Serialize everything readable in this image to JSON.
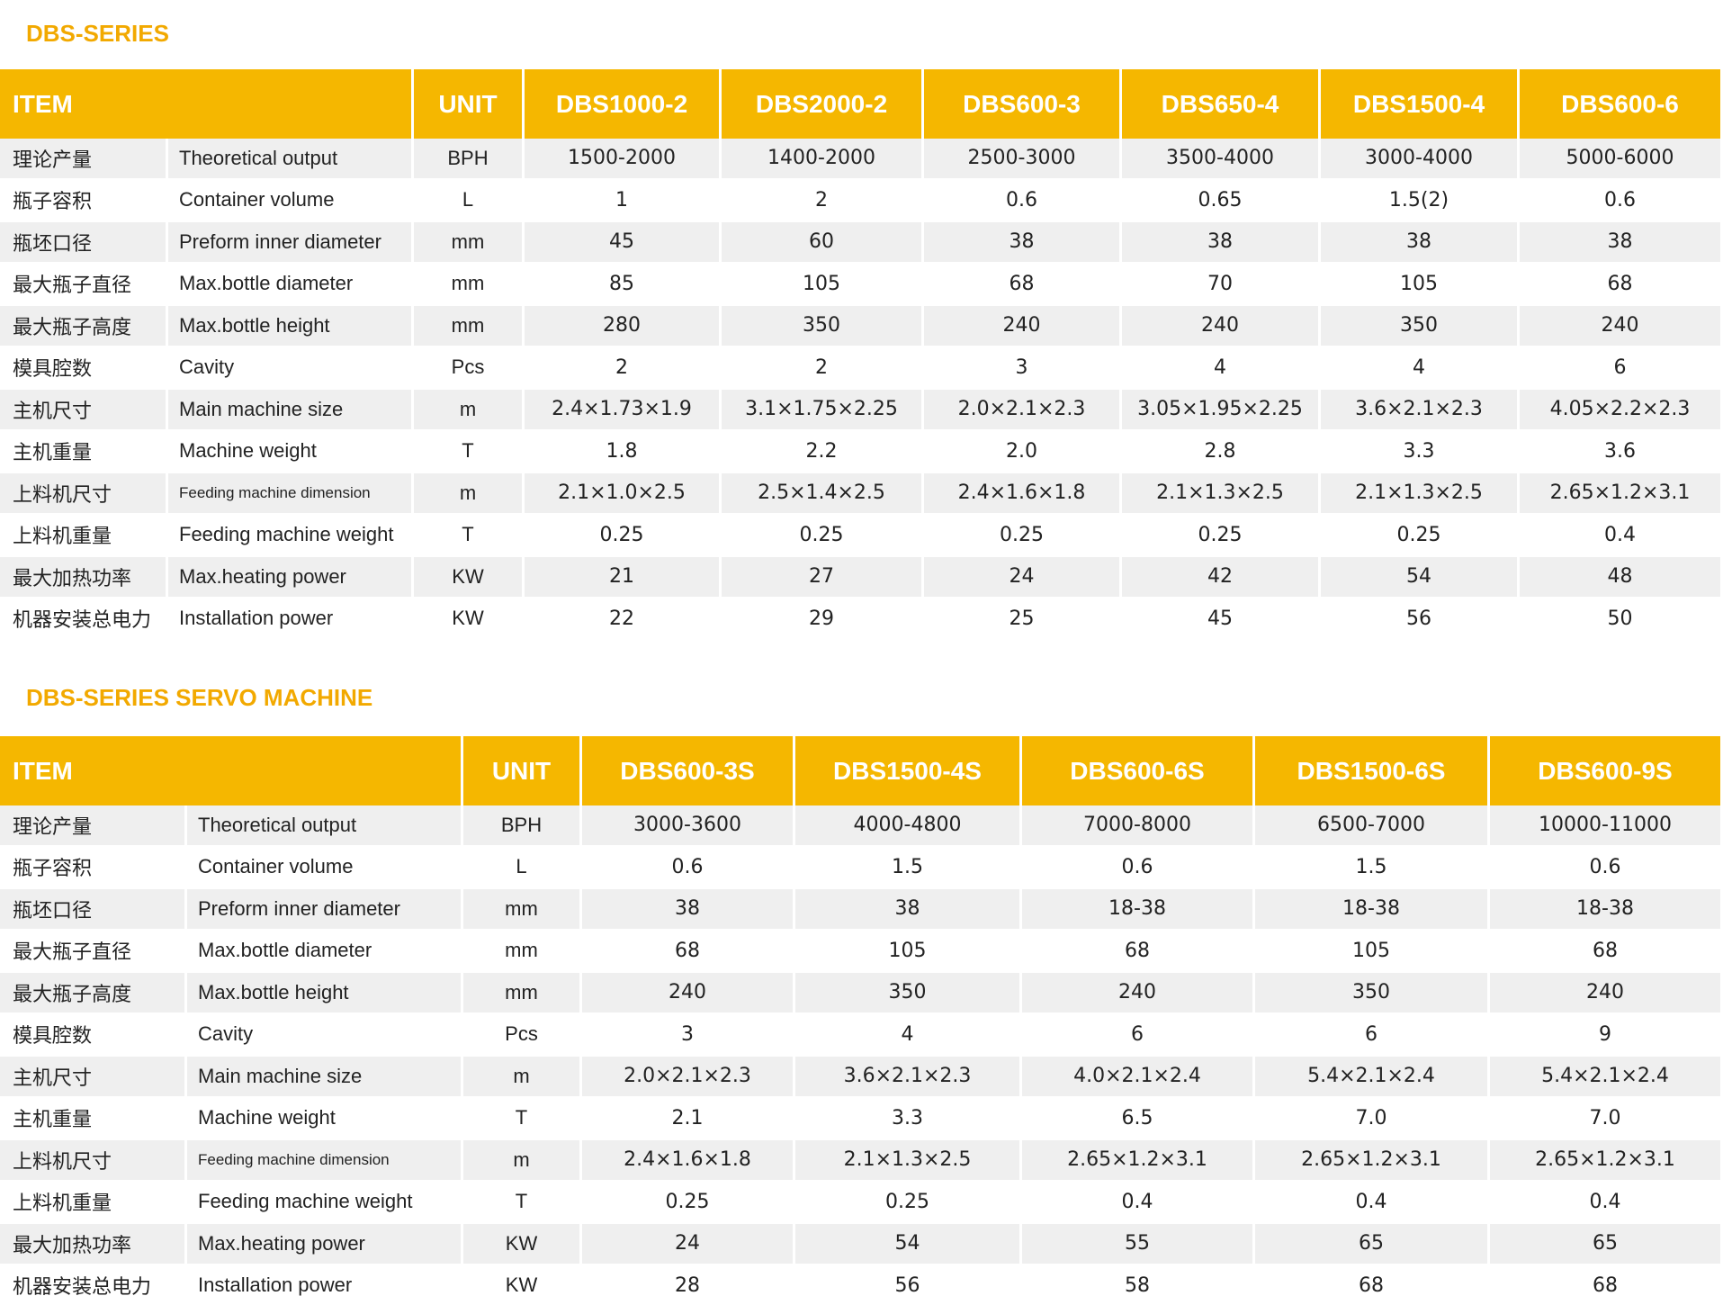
{
  "tables": [
    {
      "title": "DBS-SERIES",
      "header": {
        "item": "ITEM",
        "unit": "UNIT",
        "models": [
          "DBS1000-2",
          "DBS2000-2",
          "DBS600-3",
          "DBS650-4",
          "DBS1500-4",
          "DBS600-6"
        ]
      },
      "rows": [
        {
          "cn": "理论产量",
          "en": "Theoretical output",
          "unit": "BPH",
          "values": [
            "1500-2000",
            "1400-2000",
            "2500-3000",
            "3500-4000",
            "3000-4000",
            "5000-6000"
          ]
        },
        {
          "cn": "瓶子容积",
          "en": "Container volume",
          "unit": "L",
          "values": [
            "1",
            "2",
            "0.6",
            "0.65",
            "1.5(2)",
            "0.6"
          ]
        },
        {
          "cn": "瓶坯口径",
          "en": "Preform inner diameter",
          "unit": "mm",
          "values": [
            "45",
            "60",
            "38",
            "38",
            "38",
            "38"
          ]
        },
        {
          "cn": "最大瓶子直径",
          "en": "Max.bottle diameter",
          "unit": "mm",
          "values": [
            "85",
            "105",
            "68",
            "70",
            "105",
            "68"
          ]
        },
        {
          "cn": "最大瓶子高度",
          "en": "Max.bottle height",
          "unit": "mm",
          "values": [
            "280",
            "350",
            "240",
            "240",
            "350",
            "240"
          ]
        },
        {
          "cn": "模具腔数",
          "en": "Cavity",
          "unit": "Pcs",
          "values": [
            "2",
            "2",
            "3",
            "4",
            "4",
            "6"
          ]
        },
        {
          "cn": "主机尺寸",
          "en": "Main machine size",
          "unit": "m",
          "values": [
            "2.4×1.73×1.9",
            "3.1×1.75×2.25",
            "2.0×2.1×2.3",
            "3.05×1.95×2.25",
            "3.6×2.1×2.3",
            "4.05×2.2×2.3"
          ]
        },
        {
          "cn": "主机重量",
          "en": "Machine weight",
          "unit": "T",
          "values": [
            "1.8",
            "2.2",
            "2.0",
            "2.8",
            "3.3",
            "3.6"
          ]
        },
        {
          "cn": "上料机尺寸",
          "en": "Feeding machine dimension",
          "unit": "m",
          "values": [
            "2.1×1.0×2.5",
            "2.5×1.4×2.5",
            "2.4×1.6×1.8",
            "2.1×1.3×2.5",
            "2.1×1.3×2.5",
            "2.65×1.2×3.1"
          ]
        },
        {
          "cn": "上料机重量",
          "en": "Feeding machine weight",
          "unit": "T",
          "values": [
            "0.25",
            "0.25",
            "0.25",
            "0.25",
            "0.25",
            "0.4"
          ]
        },
        {
          "cn": "最大加热功率",
          "en": "Max.heating power",
          "unit": "KW",
          "values": [
            "21",
            "27",
            "24",
            "42",
            "54",
            "48"
          ]
        },
        {
          "cn": "机器安装总电力",
          "en": "Installation power",
          "unit": "KW",
          "values": [
            "22",
            "29",
            "25",
            "45",
            "56",
            "50"
          ]
        }
      ]
    },
    {
      "title": "DBS-SERIES SERVO MACHINE",
      "header": {
        "item": "ITEM",
        "unit": "UNIT",
        "models": [
          "DBS600-3S",
          "DBS1500-4S",
          "DBS600-6S",
          "DBS1500-6S",
          "DBS600-9S"
        ]
      },
      "rows": [
        {
          "cn": "理论产量",
          "en": "Theoretical output",
          "unit": "BPH",
          "values": [
            "3000-3600",
            "4000-4800",
            "7000-8000",
            "6500-7000",
            "10000-11000"
          ]
        },
        {
          "cn": "瓶子容积",
          "en": "Container volume",
          "unit": "L",
          "values": [
            "0.6",
            "1.5",
            "0.6",
            "1.5",
            "0.6"
          ]
        },
        {
          "cn": "瓶坯口径",
          "en": "Preform inner diameter",
          "unit": "mm",
          "values": [
            "38",
            "38",
            "18-38",
            "18-38",
            "18-38"
          ]
        },
        {
          "cn": "最大瓶子直径",
          "en": "Max.bottle diameter",
          "unit": "mm",
          "values": [
            "68",
            "105",
            "68",
            "105",
            "68"
          ]
        },
        {
          "cn": "最大瓶子高度",
          "en": "Max.bottle height",
          "unit": "mm",
          "values": [
            "240",
            "350",
            "240",
            "350",
            "240"
          ]
        },
        {
          "cn": "模具腔数",
          "en": "Cavity",
          "unit": "Pcs",
          "values": [
            "3",
            "4",
            "6",
            "6",
            "9"
          ]
        },
        {
          "cn": "主机尺寸",
          "en": "Main machine size",
          "unit": "m",
          "values": [
            "2.0×2.1×2.3",
            "3.6×2.1×2.3",
            "4.0×2.1×2.4",
            "5.4×2.1×2.4",
            "5.4×2.1×2.4"
          ]
        },
        {
          "cn": "主机重量",
          "en": "Machine weight",
          "unit": "T",
          "values": [
            "2.1",
            "3.3",
            "6.5",
            "7.0",
            "7.0"
          ]
        },
        {
          "cn": "上料机尺寸",
          "en": "Feeding machine dimension",
          "unit": "m",
          "values": [
            "2.4×1.6×1.8",
            "2.1×1.3×2.5",
            "2.65×1.2×3.1",
            "2.65×1.2×3.1",
            "2.65×1.2×3.1"
          ]
        },
        {
          "cn": "上料机重量",
          "en": "Feeding machine weight",
          "unit": "T",
          "values": [
            "0.25",
            "0.25",
            "0.4",
            "0.4",
            "0.4"
          ]
        },
        {
          "cn": "最大加热功率",
          "en": "Max.heating power",
          "unit": "KW",
          "values": [
            "24",
            "54",
            "55",
            "65",
            "65"
          ]
        },
        {
          "cn": "机器安装总电力",
          "en": "Installation power",
          "unit": "KW",
          "values": [
            "28",
            "56",
            "58",
            "68",
            "68"
          ]
        }
      ]
    }
  ]
}
